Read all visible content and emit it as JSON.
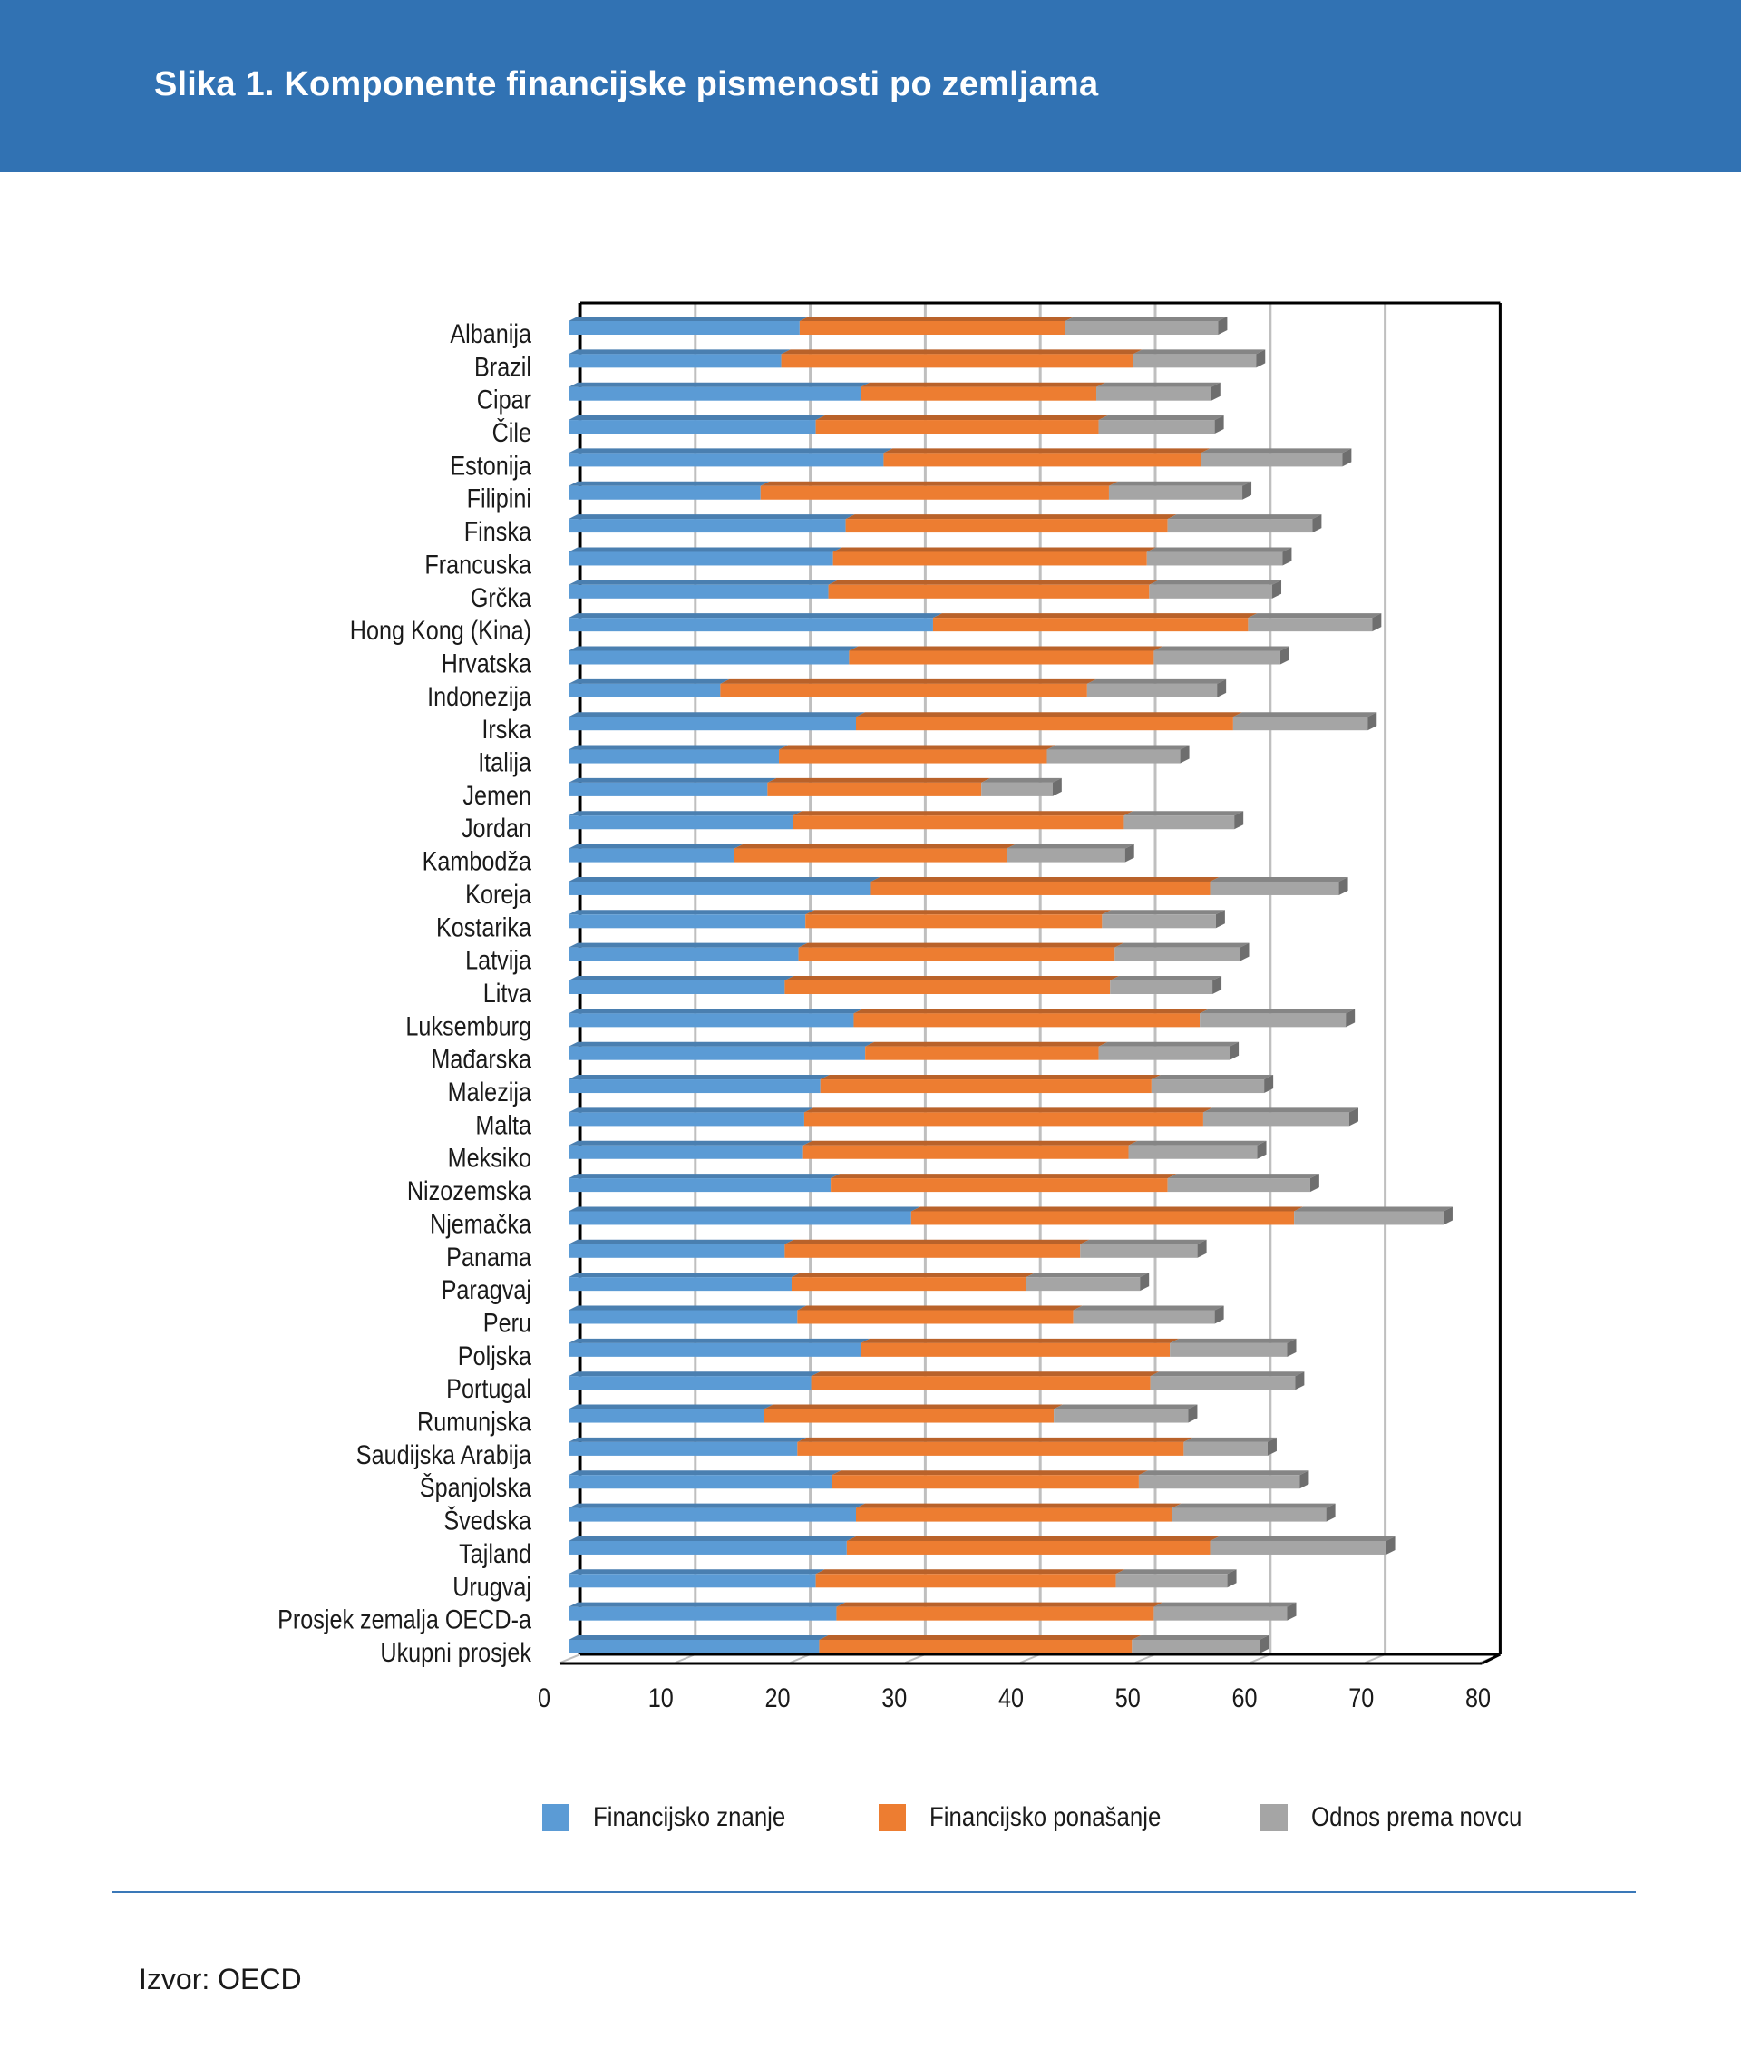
{
  "header": {
    "title": "Slika 1. Komponente financijske pismenosti po zemljama"
  },
  "colors": {
    "header_bg": "#3172b3",
    "series": [
      "#5b9bd5",
      "#ed7d31",
      "#a5a5a5"
    ],
    "series_top": [
      "#4a7fb0",
      "#b9622a",
      "#858585"
    ],
    "series_side": [
      "#3f6d97",
      "#a3561f",
      "#6e6e6e"
    ],
    "gridline": "#bfbfbf",
    "axis": "#000000"
  },
  "chart_data": {
    "type": "bar",
    "orientation": "horizontal",
    "stacked": true,
    "style": "3d",
    "title": "Slika 1. Komponente financijske pismenosti po zemljama",
    "xlabel": "",
    "ylabel": "",
    "xlim": [
      0,
      80
    ],
    "xticks": [
      0,
      10,
      20,
      30,
      40,
      50,
      60,
      70,
      80
    ],
    "grid": "vertical",
    "legend_position": "bottom",
    "categories": [
      "Albanija",
      "Brazil",
      "Cipar",
      "Čile",
      "Estonija",
      "Filipini",
      "Finska",
      "Francuska",
      "Grčka",
      "Hong Kong (Kina)",
      "Hrvatska",
      "Indonezija",
      "Irska",
      "Italija",
      "Jemen",
      "Jordan",
      "Kambodža",
      "Koreja",
      "Kostarika",
      "Latvija",
      "Litva",
      "Luksemburg",
      "Mađarska",
      "Malezija",
      "Malta",
      "Meksiko",
      "Nizozemska",
      "Njemačka",
      "Panama",
      "Paragvaj",
      "Peru",
      "Poljska",
      "Portugal",
      "Rumunjska",
      "Saudijska Arabija",
      "Španjolska",
      "Švedska",
      "Tajland",
      "Urugvaj",
      "Prosjek zemalja OECD-a",
      "Ukupni prosjek"
    ],
    "series": [
      {
        "name": "Financijsko znanje",
        "values": [
          20.1,
          18.5,
          25.4,
          21.5,
          27.4,
          16.7,
          24.1,
          23.0,
          22.6,
          31.7,
          24.4,
          13.2,
          25.0,
          18.3,
          17.3,
          19.5,
          14.4,
          26.3,
          20.6,
          20.0,
          18.8,
          24.8,
          25.8,
          21.9,
          20.5,
          20.4,
          22.8,
          29.8,
          18.8,
          19.4,
          19.9,
          25.4,
          21.1,
          17.0,
          19.9,
          22.9,
          25.0,
          24.2,
          21.5,
          23.3,
          21.8
        ]
      },
      {
        "name": "Financijsko ponašanje",
        "values": [
          23.1,
          30.6,
          20.5,
          24.6,
          27.6,
          30.3,
          28.0,
          27.3,
          27.9,
          27.4,
          26.5,
          31.9,
          32.8,
          23.3,
          18.6,
          28.8,
          23.7,
          29.5,
          25.8,
          27.5,
          28.3,
          30.1,
          20.3,
          28.8,
          34.7,
          28.3,
          29.3,
          33.3,
          25.7,
          20.4,
          24.0,
          26.9,
          29.5,
          25.2,
          33.6,
          26.7,
          27.5,
          31.6,
          26.1,
          27.6,
          27.2
        ]
      },
      {
        "name": "Odnos prema novcu",
        "values": [
          13.3,
          10.7,
          10.0,
          10.1,
          12.3,
          11.6,
          12.6,
          11.8,
          10.7,
          10.8,
          11.0,
          11.3,
          11.7,
          11.6,
          6.2,
          9.6,
          10.3,
          11.2,
          9.9,
          10.9,
          8.9,
          12.7,
          11.4,
          9.8,
          12.7,
          11.2,
          12.4,
          13.0,
          10.2,
          9.9,
          12.3,
          10.2,
          12.6,
          11.7,
          7.3,
          14.0,
          13.4,
          15.3,
          9.7,
          11.6,
          11.1
        ]
      }
    ]
  },
  "legend": {
    "items": [
      {
        "label": "Financijsko znanje"
      },
      {
        "label": "Financijsko ponašanje"
      },
      {
        "label": "Odnos prema novcu"
      }
    ]
  },
  "footer": {
    "source": "Izvor: OECD"
  }
}
